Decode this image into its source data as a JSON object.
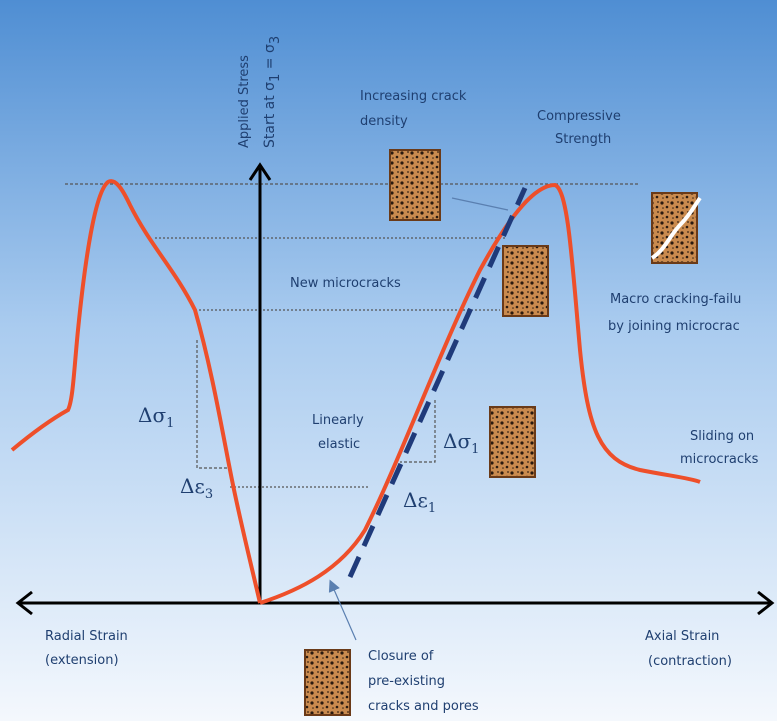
{
  "axis": {
    "stress_label": "Applied Stress",
    "stress_start": [
      "Start at σ",
      "1",
      " = σ",
      "3"
    ],
    "radial": [
      "Radial Strain",
      "(extension)"
    ],
    "axial": [
      "Axial Strain",
      "(contraction)"
    ]
  },
  "labels": {
    "crack_density": [
      "Increasing crack",
      "density"
    ],
    "compressive": [
      "Compressive",
      "Strength"
    ],
    "new_micro": "New microcracks",
    "macro": [
      "Macro cracking-failu",
      "by joining microcrac"
    ],
    "linear": [
      "Linearly",
      "elastic"
    ],
    "sliding": [
      "Sliding on",
      "microcracks"
    ],
    "closure": [
      "Closure of",
      "pre-existing",
      "cracks and pores"
    ]
  },
  "symbols": {
    "d_sigma_left": [
      "Δσ",
      "1"
    ],
    "d_eps_3": [
      "Δε",
      "3"
    ],
    "d_sigma_right": [
      "Δσ",
      "1"
    ],
    "d_eps_1": [
      "Δε",
      "1"
    ]
  }
}
